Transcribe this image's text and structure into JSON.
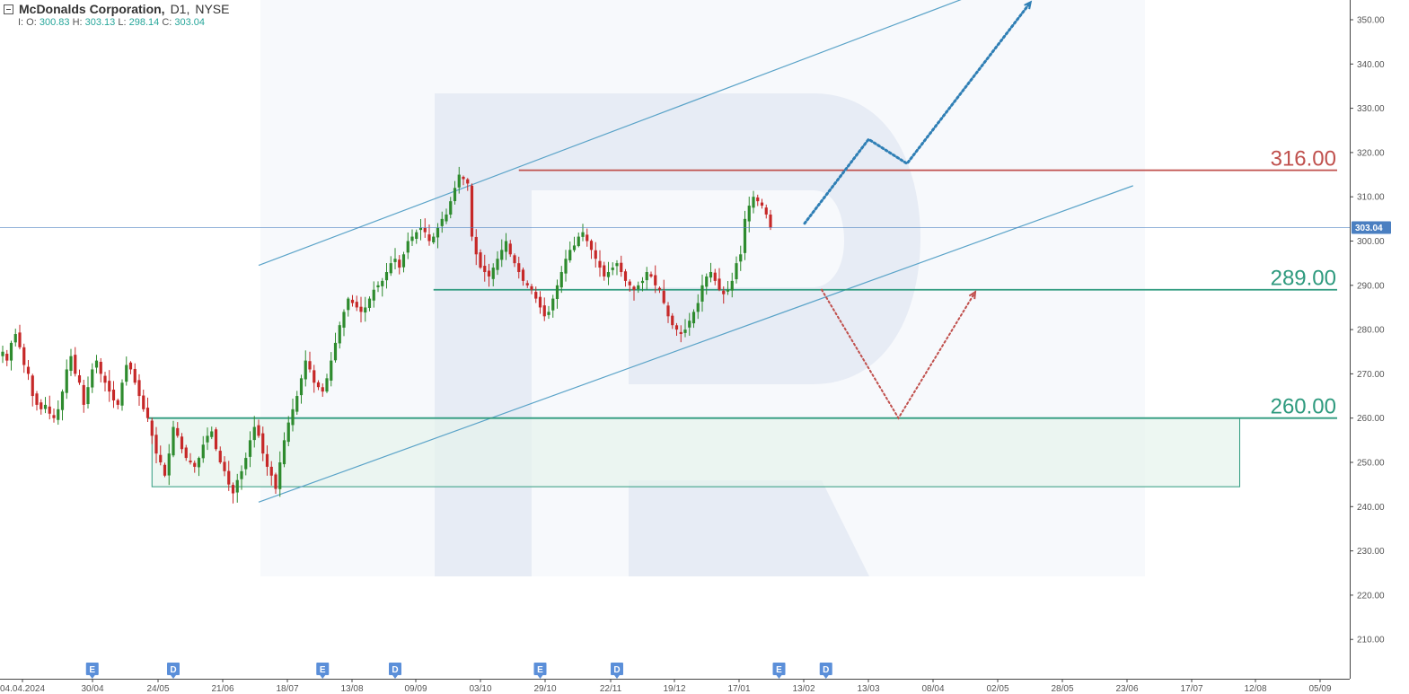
{
  "header": {
    "symbol": "McDonalds Corporation,",
    "timeframe": "D1,",
    "exchange": "NYSE",
    "ohlc": {
      "o_label": "I: O:",
      "o": "300.83",
      "h_label": "H:",
      "h": "303.13",
      "l_label": "L:",
      "l": "298.14",
      "c_label": "C:",
      "c": "303.04"
    }
  },
  "colors": {
    "bull": "#2e8b2e",
    "bear": "#c62828",
    "resistance": "#c0504d",
    "support": "#2e9a7e",
    "channel": "#5aa3c8",
    "forecast_up": "#2f7fb5",
    "forecast_down": "#c0504d",
    "price_line": "#4a7fc1"
  },
  "chart_data": {
    "type": "candlestick",
    "ylim": [
      202,
      355
    ],
    "yticks": [
      "210.00",
      "220.00",
      "230.00",
      "240.00",
      "250.00",
      "260.00",
      "270.00",
      "280.00",
      "290.00",
      "300.00",
      "310.00",
      "320.00",
      "330.00",
      "340.00",
      "350.00"
    ],
    "xtick_labels": [
      "04.04.2024",
      "30/04",
      "24/05",
      "21/06",
      "18/07",
      "13/08",
      "09/09",
      "03/10",
      "29/10",
      "22/11",
      "19/12",
      "17/01",
      "13/02",
      "13/03",
      "08/04",
      "02/05",
      "28/05",
      "23/06",
      "17/07",
      "12/08",
      "05/09"
    ],
    "last_price": "303.04",
    "levels": [
      {
        "label": "316.00",
        "value": 316.0,
        "color": "resistance"
      },
      {
        "label": "289.00",
        "value": 289.0,
        "color": "support"
      },
      {
        "label": "260.00",
        "value": 260.0,
        "color": "support"
      }
    ],
    "support_zone": {
      "start_bar": 35,
      "end_bar": 290,
      "top": 260.0,
      "bottom": 244.5
    },
    "channel": {
      "upper": [
        [
          60,
          294.5
        ],
        [
          230,
          356.5
        ]
      ],
      "lower": [
        [
          60,
          241.0
        ],
        [
          265,
          312.5
        ]
      ]
    },
    "forecast_bull": [
      [
        188,
        304
      ],
      [
        203,
        323
      ],
      [
        212,
        317.5
      ],
      [
        241,
        354
      ]
    ],
    "forecast_bear": [
      [
        192,
        289
      ],
      [
        210,
        260
      ],
      [
        228,
        288.5
      ]
    ],
    "events": [
      {
        "label": "E",
        "bar": 21
      },
      {
        "label": "D",
        "bar": 40
      },
      {
        "label": "E",
        "bar": 75
      },
      {
        "label": "D",
        "bar": 92
      },
      {
        "label": "E",
        "bar": 126
      },
      {
        "label": "D",
        "bar": 144
      },
      {
        "label": "E",
        "bar": 182
      },
      {
        "label": "D",
        "bar": 193
      }
    ],
    "closes": [
      275,
      273,
      277,
      279,
      276,
      272,
      270,
      265,
      263,
      262,
      263,
      261,
      260,
      262,
      266,
      271,
      274,
      270,
      268,
      263,
      267,
      271,
      273,
      270,
      268,
      266,
      264,
      263,
      268,
      272,
      271,
      268,
      265,
      262,
      260,
      256,
      252,
      250,
      247,
      252,
      258,
      256,
      253,
      251,
      250,
      249,
      251,
      254,
      256,
      257,
      253,
      250,
      248,
      245,
      243,
      246,
      248,
      251,
      255,
      258,
      256,
      252,
      249,
      247,
      244,
      250,
      255,
      259,
      262,
      265,
      269,
      273,
      271,
      268,
      267,
      266,
      269,
      273,
      277,
      281,
      284,
      287,
      286,
      285,
      284,
      285,
      287,
      289,
      290,
      291,
      293,
      295,
      296,
      294,
      297,
      300,
      301,
      302,
      303,
      302,
      300,
      301,
      303,
      305,
      306,
      309,
      312,
      315,
      314,
      313,
      301,
      297,
      294,
      293,
      292,
      294,
      296,
      298,
      300,
      297,
      295,
      293,
      291,
      290,
      289,
      287,
      285,
      283,
      284,
      287,
      290,
      293,
      296,
      298,
      299,
      301,
      302,
      300,
      298,
      296,
      294,
      292,
      293,
      294,
      295,
      293,
      291,
      290,
      289,
      290,
      291,
      293,
      292,
      290,
      289,
      286,
      283,
      281,
      280,
      279,
      280,
      282,
      284,
      286,
      290,
      292,
      293,
      291,
      289,
      288,
      289,
      291,
      295,
      297,
      305,
      308,
      310,
      309,
      308,
      306,
      303.04
    ]
  }
}
